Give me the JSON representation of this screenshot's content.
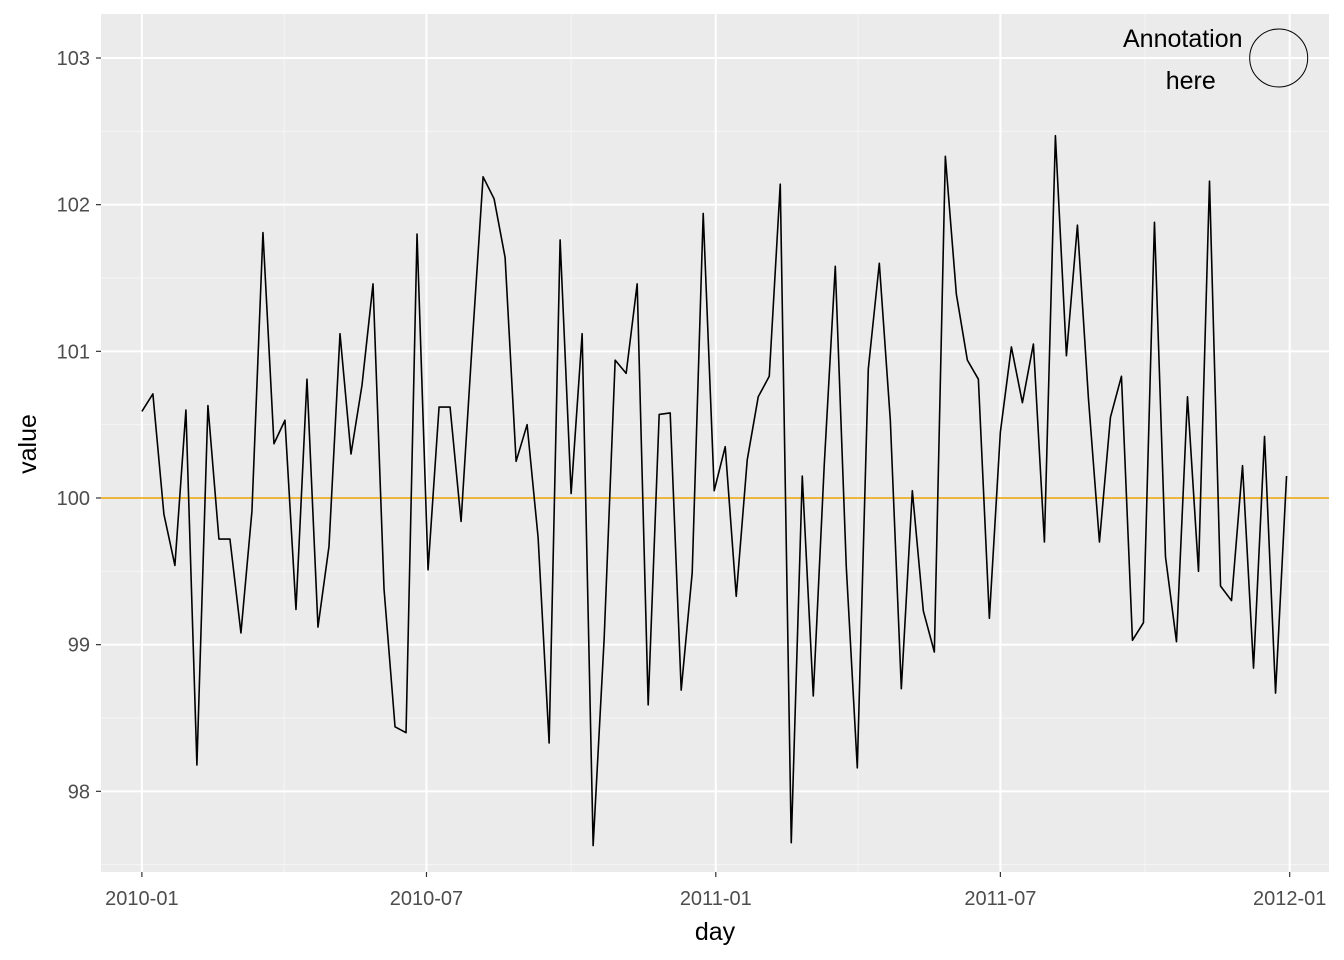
{
  "chart_data": {
    "type": "line",
    "title": "",
    "xlabel": "day",
    "ylabel": "value",
    "x_tick_labels": [
      "2010-01",
      "2010-07",
      "2011-01",
      "2011-07",
      "2012-01"
    ],
    "x_tick_values": [
      "2010-01-01",
      "2010-07-01",
      "2011-01-01",
      "2011-07-01",
      "2012-01-01"
    ],
    "y_tick_labels": [
      "98",
      "99",
      "100",
      "101",
      "102",
      "103"
    ],
    "y_tick_values": [
      98,
      99,
      100,
      101,
      102,
      103
    ],
    "xlim": [
      "2009-12-06",
      "2012-01-26"
    ],
    "ylim": [
      97.45,
      103.3
    ],
    "grid": true,
    "reference_line": {
      "y": 100,
      "color": "#E69F00"
    },
    "annotation": {
      "lines": [
        "Annotation",
        "here"
      ],
      "x": "2011-10-25",
      "y": 103
    },
    "annotation_circle": {
      "x": "2011-12-25",
      "y": 103
    },
    "series": [
      {
        "x": [
          "2010-01-01",
          "2010-01-08",
          "2010-01-15",
          "2010-01-22",
          "2010-01-29",
          "2010-02-05",
          "2010-02-12",
          "2010-02-19",
          "2010-02-26",
          "2010-03-05",
          "2010-03-12",
          "2010-03-19",
          "2010-03-26",
          "2010-04-02",
          "2010-04-09",
          "2010-04-16",
          "2010-04-23",
          "2010-04-30",
          "2010-05-07",
          "2010-05-14",
          "2010-05-21",
          "2010-05-28",
          "2010-06-04",
          "2010-06-11",
          "2010-06-18",
          "2010-06-25",
          "2010-07-02",
          "2010-07-09",
          "2010-07-16",
          "2010-07-23",
          "2010-07-30",
          "2010-08-06",
          "2010-08-13",
          "2010-08-20",
          "2010-08-27",
          "2010-09-03",
          "2010-09-10",
          "2010-09-17",
          "2010-09-24",
          "2010-10-01",
          "2010-10-08",
          "2010-10-15",
          "2010-10-22",
          "2010-10-29",
          "2010-11-05",
          "2010-11-12",
          "2010-11-19",
          "2010-11-26",
          "2010-12-03",
          "2010-12-10",
          "2010-12-17",
          "2010-12-24",
          "2010-12-31",
          "2011-01-07",
          "2011-01-14",
          "2011-01-21",
          "2011-01-28",
          "2011-02-04",
          "2011-02-11",
          "2011-02-18",
          "2011-02-25",
          "2011-03-04",
          "2011-03-11",
          "2011-03-18",
          "2011-03-25",
          "2011-04-01",
          "2011-04-08",
          "2011-04-15",
          "2011-04-22",
          "2011-04-29",
          "2011-05-06",
          "2011-05-13",
          "2011-05-20",
          "2011-05-27",
          "2011-06-03",
          "2011-06-10",
          "2011-06-17",
          "2011-06-24",
          "2011-07-01",
          "2011-07-08",
          "2011-07-15",
          "2011-07-22",
          "2011-07-29",
          "2011-08-05",
          "2011-08-12",
          "2011-08-19",
          "2011-08-26",
          "2011-09-02",
          "2011-09-09",
          "2011-09-16",
          "2011-09-23",
          "2011-09-30",
          "2011-10-07",
          "2011-10-14",
          "2011-10-21",
          "2011-10-28",
          "2011-11-04",
          "2011-11-11",
          "2011-11-18",
          "2011-11-25",
          "2011-12-02",
          "2011-12-09",
          "2011-12-16",
          "2011-12-23",
          "2011-12-30"
        ],
        "values": [
          100.59,
          100.71,
          99.89,
          99.54,
          100.6,
          98.18,
          100.63,
          99.72,
          99.72,
          99.08,
          99.91,
          101.81,
          100.37,
          100.53,
          99.24,
          100.81,
          99.12,
          99.67,
          101.12,
          100.3,
          100.77,
          101.46,
          99.38,
          98.44,
          98.4,
          101.8,
          99.51,
          100.62,
          100.62,
          99.84,
          101.04,
          102.19,
          102.04,
          101.64,
          100.25,
          100.5,
          99.73,
          98.33,
          101.76,
          100.03,
          101.12,
          97.63,
          99.04,
          100.94,
          100.85,
          101.46,
          98.59,
          100.57,
          100.58,
          98.69,
          99.49,
          101.94,
          100.05,
          100.35,
          99.33,
          100.26,
          100.69,
          100.83,
          102.14,
          97.65,
          100.15,
          98.65,
          100.23,
          101.58,
          99.53,
          98.16,
          100.88,
          101.6,
          100.53,
          98.7,
          100.05,
          99.23,
          98.95,
          102.33,
          101.39,
          100.94,
          100.81,
          99.18,
          100.45,
          101.03,
          100.65,
          101.05,
          99.7,
          102.47,
          100.97,
          101.86,
          100.68,
          99.7,
          100.55,
          100.83,
          99.03,
          99.15,
          101.88,
          99.6,
          99.02,
          100.69,
          99.5,
          102.16,
          99.4,
          99.3,
          100.22,
          98.84,
          100.42,
          98.67,
          100.15
        ],
        "color": "#000000"
      }
    ],
    "colors": {
      "panel_background": "#EBEBEB",
      "grid_major": "#FFFFFF",
      "grid_minor": "#F5F5F5",
      "line": "#000000",
      "hline": "#E69F00",
      "tick_text": "#4D4D4D"
    }
  }
}
